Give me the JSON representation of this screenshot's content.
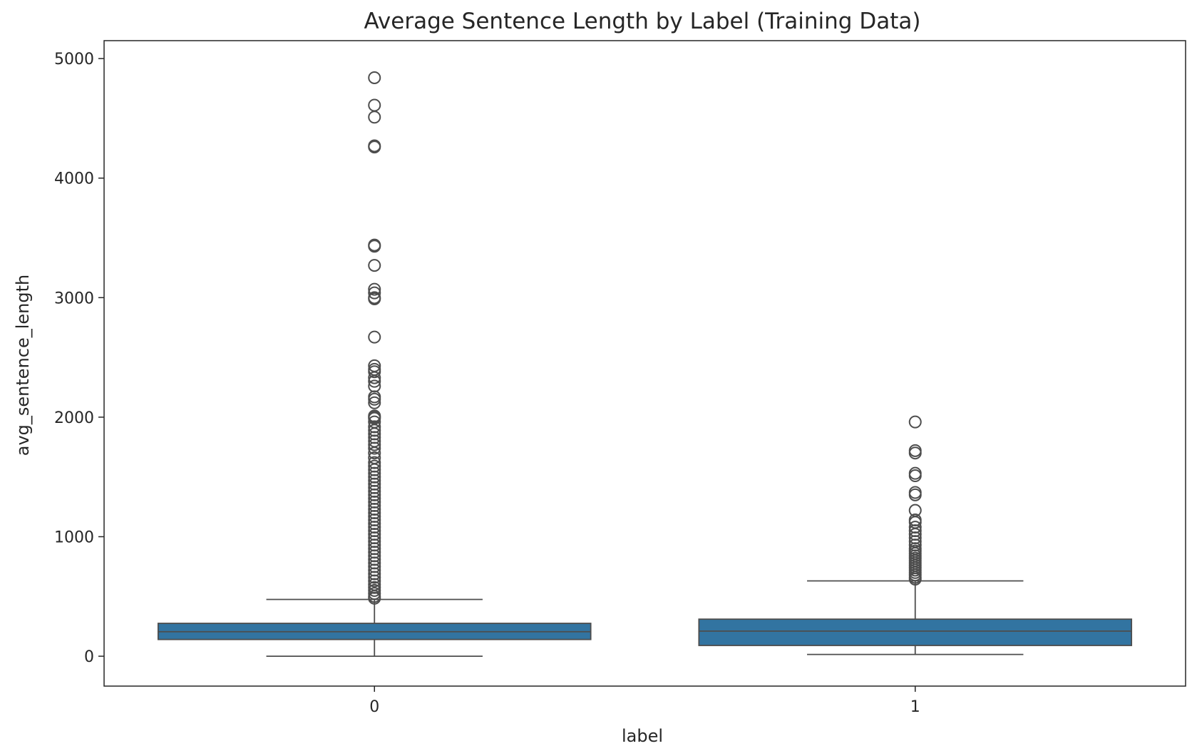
{
  "chart_data": {
    "type": "box",
    "title": "Average Sentence Length by Label (Training Data)",
    "xlabel": "label",
    "ylabel": "avg_sentence_length",
    "categories": [
      "0",
      "1"
    ],
    "ylim": [
      -250,
      5150
    ],
    "yticks": [
      0,
      1000,
      2000,
      3000,
      4000,
      5000
    ],
    "grid": false,
    "box_color": "#3274a1",
    "line_color": "#4d4d4d",
    "boxes": [
      {
        "label": "0",
        "whisker_low": 0,
        "q1": 140,
        "median": 205,
        "q3": 275,
        "whisker_high": 475,
        "outliers": [
          4840,
          4610,
          4510,
          4270,
          4260,
          3440,
          3430,
          3270,
          3070,
          3040,
          3000,
          2990,
          2670,
          2430,
          2400,
          2380,
          2330,
          2300,
          2260,
          2170,
          2150,
          2120,
          2010,
          2000,
          1990,
          1960,
          1920,
          1890,
          1860,
          1830,
          1800,
          1770,
          1740,
          1700,
          1660,
          1620,
          1590,
          1560,
          1530,
          1500,
          1470,
          1440,
          1410,
          1380,
          1350,
          1320,
          1290,
          1260,
          1230,
          1200,
          1170,
          1140,
          1110,
          1080,
          1050,
          1020,
          990,
          960,
          930,
          900,
          870,
          840,
          810,
          780,
          750,
          720,
          690,
          660,
          630,
          600,
          575,
          550,
          525,
          500,
          485
        ]
      },
      {
        "label": "1",
        "whisker_low": 15,
        "q1": 90,
        "median": 210,
        "q3": 310,
        "whisker_high": 630,
        "outliers": [
          1960,
          1720,
          1700,
          1530,
          1510,
          1370,
          1350,
          1220,
          1140,
          1120,
          1080,
          1050,
          1020,
          990,
          960,
          930,
          900,
          880,
          860,
          840,
          820,
          800,
          780,
          760,
          740,
          720,
          700,
          680,
          660,
          645
        ]
      }
    ]
  }
}
